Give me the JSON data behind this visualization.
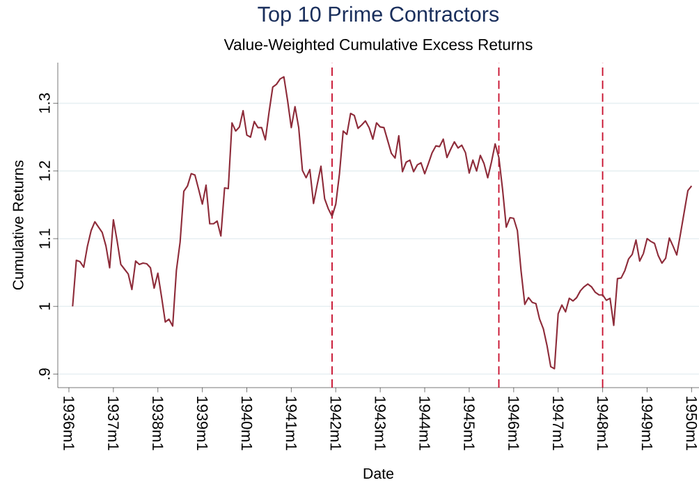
{
  "chart_data": {
    "type": "line",
    "title": "Top 10 Prime Contractors",
    "subtitle": "Value-Weighted Cumulative Excess Returns",
    "xlabel": "Date",
    "ylabel": "Cumulative Returns",
    "x": [
      "1936-02",
      "1936-03",
      "1936-04",
      "1936-05",
      "1936-06",
      "1936-07",
      "1936-08",
      "1936-09",
      "1936-10",
      "1936-11",
      "1936-12",
      "1937-01",
      "1937-02",
      "1937-03",
      "1937-04",
      "1937-05",
      "1937-06",
      "1937-07",
      "1937-08",
      "1937-09",
      "1937-10",
      "1937-11",
      "1937-12",
      "1938-01",
      "1938-02",
      "1938-03",
      "1938-04",
      "1938-05",
      "1938-06",
      "1938-07",
      "1938-08",
      "1938-09",
      "1938-10",
      "1938-11",
      "1938-12",
      "1939-01",
      "1939-02",
      "1939-03",
      "1939-04",
      "1939-05",
      "1939-06",
      "1939-07",
      "1939-08",
      "1939-09",
      "1939-10",
      "1939-11",
      "1939-12",
      "1940-01",
      "1940-02",
      "1940-03",
      "1940-04",
      "1940-05",
      "1940-06",
      "1940-07",
      "1940-08",
      "1940-09",
      "1940-10",
      "1940-11",
      "1940-12",
      "1941-01",
      "1941-02",
      "1941-03",
      "1941-04",
      "1941-05",
      "1941-06",
      "1941-07",
      "1941-08",
      "1941-09",
      "1941-10",
      "1941-11",
      "1941-12",
      "1942-01",
      "1942-02",
      "1942-03",
      "1942-04",
      "1942-05",
      "1942-06",
      "1942-07",
      "1942-08",
      "1942-09",
      "1942-10",
      "1942-11",
      "1942-12",
      "1943-01",
      "1943-02",
      "1943-03",
      "1943-04",
      "1943-05",
      "1943-06",
      "1943-07",
      "1943-08",
      "1943-09",
      "1943-10",
      "1943-11",
      "1943-12",
      "1944-01",
      "1944-02",
      "1944-03",
      "1944-04",
      "1944-05",
      "1944-06",
      "1944-07",
      "1944-08",
      "1944-09",
      "1944-10",
      "1944-11",
      "1944-12",
      "1945-01",
      "1945-02",
      "1945-03",
      "1945-04",
      "1945-05",
      "1945-06",
      "1945-07",
      "1945-08",
      "1945-09",
      "1945-10",
      "1945-11",
      "1945-12",
      "1946-01",
      "1946-02",
      "1946-03",
      "1946-04",
      "1946-05",
      "1946-06",
      "1946-07",
      "1946-08",
      "1946-09",
      "1946-10",
      "1946-11",
      "1946-12",
      "1947-01",
      "1947-02",
      "1947-03",
      "1947-04",
      "1947-05",
      "1947-06",
      "1947-07",
      "1947-08",
      "1947-09",
      "1947-10",
      "1947-11",
      "1947-12",
      "1948-01",
      "1948-02",
      "1948-03",
      "1948-04",
      "1948-05",
      "1948-06",
      "1948-07",
      "1948-08",
      "1948-09",
      "1948-10",
      "1948-11",
      "1948-12",
      "1949-01",
      "1949-02",
      "1949-03",
      "1949-04",
      "1949-05",
      "1949-06",
      "1949-07",
      "1949-08",
      "1949-09",
      "1949-10",
      "1949-11",
      "1949-12",
      "1950-01"
    ],
    "series": [
      {
        "color": "#8e2c3a",
        "values": [
          1.0,
          1.068,
          1.066,
          1.058,
          1.089,
          1.112,
          1.125,
          1.117,
          1.109,
          1.089,
          1.057,
          1.128,
          1.097,
          1.062,
          1.055,
          1.048,
          1.025,
          1.067,
          1.062,
          1.064,
          1.063,
          1.057,
          1.027,
          1.049,
          1.014,
          0.977,
          0.981,
          0.971,
          1.053,
          1.095,
          1.17,
          1.178,
          1.196,
          1.194,
          1.173,
          1.151,
          1.179,
          1.122,
          1.122,
          1.126,
          1.104,
          1.175,
          1.174,
          1.271,
          1.259,
          1.265,
          1.289,
          1.253,
          1.25,
          1.273,
          1.264,
          1.264,
          1.246,
          1.287,
          1.324,
          1.328,
          1.336,
          1.339,
          1.304,
          1.264,
          1.295,
          1.264,
          1.201,
          1.19,
          1.202,
          1.152,
          1.18,
          1.207,
          1.159,
          1.144,
          1.133,
          1.151,
          1.196,
          1.259,
          1.254,
          1.285,
          1.282,
          1.263,
          1.268,
          1.274,
          1.264,
          1.247,
          1.271,
          1.265,
          1.264,
          1.245,
          1.226,
          1.219,
          1.252,
          1.199,
          1.213,
          1.216,
          1.199,
          1.209,
          1.212,
          1.196,
          1.211,
          1.227,
          1.237,
          1.236,
          1.247,
          1.22,
          1.232,
          1.243,
          1.234,
          1.238,
          1.227,
          1.197,
          1.216,
          1.2,
          1.223,
          1.211,
          1.19,
          1.213,
          1.24,
          1.22,
          1.173,
          1.117,
          1.131,
          1.13,
          1.112,
          1.052,
          1.003,
          1.013,
          1.006,
          1.004,
          0.981,
          0.967,
          0.942,
          0.911,
          0.908,
          0.989,
          1.002,
          0.992,
          1.012,
          1.008,
          1.013,
          1.023,
          1.029,
          1.033,
          1.029,
          1.021,
          1.017,
          1.017,
          1.009,
          1.012,
          0.972,
          1.041,
          1.042,
          1.053,
          1.07,
          1.077,
          1.098,
          1.067,
          1.078,
          1.1,
          1.096,
          1.093,
          1.075,
          1.064,
          1.071,
          1.101,
          1.089,
          1.076,
          1.107,
          1.139,
          1.171,
          1.178
        ]
      }
    ],
    "xlim": [
      "1935-10",
      "1950-03"
    ],
    "xticks": [
      {
        "value": "1936-01",
        "label": "1936m1"
      },
      {
        "value": "1937-01",
        "label": "1937m1"
      },
      {
        "value": "1938-01",
        "label": "1938m1"
      },
      {
        "value": "1939-01",
        "label": "1939m1"
      },
      {
        "value": "1940-01",
        "label": "1940m1"
      },
      {
        "value": "1941-01",
        "label": "1941m1"
      },
      {
        "value": "1942-01",
        "label": "1942m1"
      },
      {
        "value": "1943-01",
        "label": "1943m1"
      },
      {
        "value": "1944-01",
        "label": "1944m1"
      },
      {
        "value": "1945-01",
        "label": "1945m1"
      },
      {
        "value": "1946-01",
        "label": "1946m1"
      },
      {
        "value": "1947-01",
        "label": "1947m1"
      },
      {
        "value": "1948-01",
        "label": "1948m1"
      },
      {
        "value": "1949-01",
        "label": "1949m1"
      },
      {
        "value": "1950-01",
        "label": "1950m1"
      }
    ],
    "ylim": [
      0.88,
      1.36
    ],
    "yticks": [
      {
        "value": 0.9,
        "label": ".9"
      },
      1,
      1.1,
      1.2,
      1.3
    ],
    "ref_lines": [
      {
        "axis": "x",
        "value": "1941-12",
        "color": "#c8102e",
        "line_style": "dashed"
      },
      {
        "axis": "x",
        "value": "1945-09",
        "color": "#c8102e",
        "line_style": "dashed"
      },
      {
        "axis": "x",
        "value": "1948-01",
        "color": "#c8102e",
        "line_style": "dashed"
      }
    ],
    "grid": "y",
    "marker": "none",
    "line_style": "solid"
  }
}
